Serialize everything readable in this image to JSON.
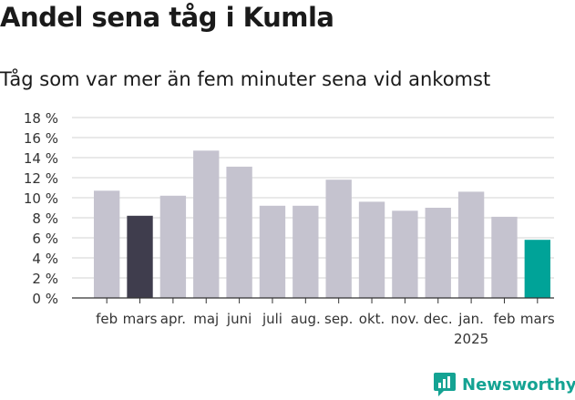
{
  "title": "Andel sena tåg i Kumla",
  "subtitle": "Tåg som var mer än fem minuter sena vid ankomst",
  "brand": {
    "name": "Newsworthy",
    "icon": "newsworthy-logo-icon"
  },
  "colors": {
    "bar_default": "#c5c3cf",
    "bar_highlight_previous": "#3f3d4d",
    "bar_highlight_latest": "#00a398",
    "gridline": "#dcdcdc",
    "axis": "#333333",
    "brand": "#14a393"
  },
  "chart_data": {
    "type": "bar",
    "categories": [
      "feb",
      "mars",
      "apr.",
      "maj",
      "juni",
      "juli",
      "aug.",
      "sep.",
      "okt.",
      "nov.",
      "dec.",
      "jan.",
      "feb",
      "mars"
    ],
    "year_labels": [
      {
        "category_index": 11,
        "label": "2025"
      }
    ],
    "values": [
      10.7,
      8.2,
      10.2,
      14.7,
      13.1,
      9.2,
      9.2,
      11.8,
      9.6,
      8.7,
      9.0,
      10.6,
      8.1,
      5.8
    ],
    "highlight": {
      "previous_index": 1,
      "latest_index": 13
    },
    "ylim": [
      0,
      18
    ],
    "yticks": [
      0,
      2,
      4,
      6,
      8,
      10,
      12,
      14,
      16,
      18
    ],
    "ytick_suffix": " %",
    "grid": true,
    "xlabel": "",
    "ylabel": ""
  }
}
